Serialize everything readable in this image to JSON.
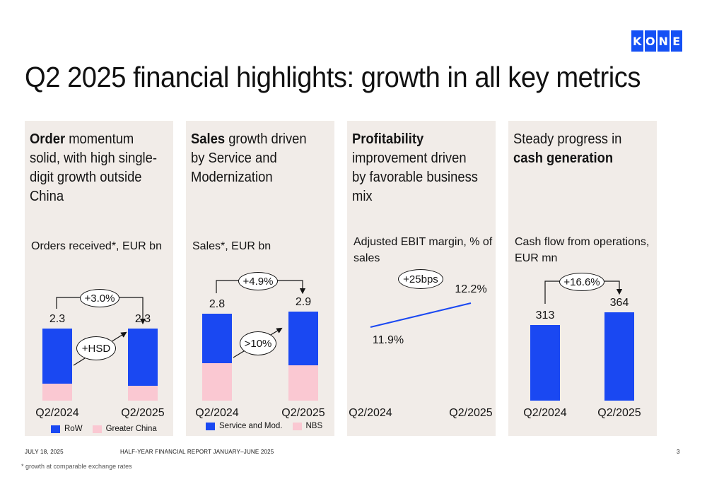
{
  "logo": {
    "letters": [
      "K",
      "O",
      "N",
      "E"
    ]
  },
  "title": "Q2 2025 financial highlights: growth in all key metrics",
  "panels": {
    "orders": {
      "headline_bold": "Order",
      "headline_rest": " momentum solid, with high single-digit growth outside China",
      "subtitle": "Orders received*, EUR bn",
      "growth_label": "+3.0%",
      "inner_label": "+HSD",
      "legend": [
        "RoW",
        "Greater China"
      ]
    },
    "sales": {
      "headline_bold": "Sales",
      "headline_rest": " growth driven by Service and Modernization",
      "subtitle": "Sales*, EUR bn",
      "growth_label": "+4.9%",
      "inner_label": ">10%",
      "legend": [
        "Service and Mod.",
        "NBS"
      ]
    },
    "profitability": {
      "headline_bold": "Profitability",
      "headline_rest": " improvement driven by favorable business mix",
      "subtitle": "Adjusted EBIT margin, % of sales",
      "growth_label": "+25bps"
    },
    "cash": {
      "headline_rest": "Steady progress in ",
      "headline_bold": "cash generation",
      "subtitle": "Cash flow from operations, EUR mn",
      "growth_label": "+16.6%"
    }
  },
  "chart_data": [
    {
      "type": "bar",
      "stacked": true,
      "categories": [
        "Q2/2024",
        "Q2/2025"
      ],
      "series": [
        {
          "name": "RoW",
          "values": [
            1.76,
            1.82
          ]
        },
        {
          "name": "Greater China",
          "values": [
            0.54,
            0.48
          ]
        }
      ],
      "totals": [
        "2.3",
        "2.3"
      ],
      "colors": [
        "#1a48f2",
        "#fac8d2"
      ],
      "ylim": [
        0,
        2.3
      ]
    },
    {
      "type": "bar",
      "stacked": true,
      "categories": [
        "Q2/2024",
        "Q2/2025"
      ],
      "series": [
        {
          "name": "Service and Mod.",
          "values": [
            1.6,
            1.75
          ]
        },
        {
          "name": "NBS",
          "values": [
            1.2,
            1.15
          ]
        }
      ],
      "totals": [
        "2.8",
        "2.9"
      ],
      "colors": [
        "#1a48f2",
        "#fac8d2"
      ],
      "ylim": [
        0,
        2.9
      ]
    },
    {
      "type": "line",
      "categories": [
        "Q2/2024",
        "Q2/2025"
      ],
      "values": [
        11.9,
        12.2
      ],
      "value_labels": [
        "11.9%",
        "12.2%"
      ],
      "color": "#1a48f2"
    },
    {
      "type": "bar",
      "categories": [
        "Q2/2024",
        "Q2/2025"
      ],
      "values": [
        313,
        364
      ],
      "value_labels": [
        "313",
        "364"
      ],
      "color": "#1a48f2",
      "ylim": [
        0,
        364
      ]
    }
  ],
  "footer": {
    "date": "JULY 18, 2025",
    "report": "HALF-YEAR FINANCIAL REPORT JANUARY–JUNE 2025",
    "page": "3",
    "note": "* growth at comparable exchange rates"
  }
}
